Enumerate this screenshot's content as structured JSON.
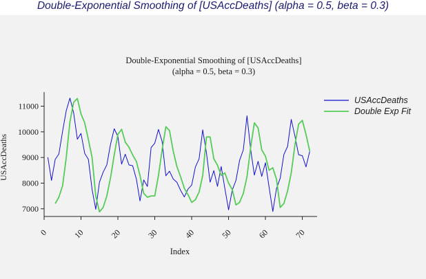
{
  "page_title": "Double-Exponential Smoothing of [USAccDeaths] (alpha = 0.5, beta = 0.3)",
  "colors": {
    "heading": "#1a1a6e",
    "panel_background": "#f2f2f2",
    "series_actual": "#1010cc",
    "series_fit": "#55cc55"
  },
  "chart_data": {
    "type": "line",
    "title": "Double-Exponential Smoothing of [USAccDeaths]",
    "subtitle": "(alpha = 0.5, beta = 0.3)",
    "xlabel": "Index",
    "ylabel": "USAccDeaths",
    "xlim": [
      0,
      74
    ],
    "ylim": [
      6700,
      11550
    ],
    "x_ticks": [
      0,
      10,
      20,
      30,
      40,
      50,
      60,
      70
    ],
    "y_ticks": [
      7000,
      8000,
      9000,
      10000,
      11000
    ],
    "grid": false,
    "legend_position": "right",
    "series": [
      {
        "name": "USAccDeaths",
        "color": "#1010cc",
        "x": [
          1,
          2,
          3,
          4,
          5,
          6,
          7,
          8,
          9,
          10,
          11,
          12,
          13,
          14,
          15,
          16,
          17,
          18,
          19,
          20,
          21,
          22,
          23,
          24,
          25,
          26,
          27,
          28,
          29,
          30,
          31,
          32,
          33,
          34,
          35,
          36,
          37,
          38,
          39,
          40,
          41,
          42,
          43,
          44,
          45,
          46,
          47,
          48,
          49,
          50,
          51,
          52,
          53,
          54,
          55,
          56,
          57,
          58,
          59,
          60,
          61,
          62,
          63,
          64,
          65,
          66,
          67,
          68,
          69,
          70,
          71,
          72
        ],
        "values": [
          9007,
          8106,
          8928,
          9137,
          10017,
          10826,
          11317,
          10744,
          9713,
          9938,
          9161,
          8927,
          7750,
          6981,
          8038,
          8422,
          8714,
          9512,
          10120,
          9823,
          8743,
          9129,
          8710,
          8680,
          8162,
          7306,
          8124,
          7870,
          9387,
          9556,
          10093,
          9620,
          8285,
          8466,
          8160,
          8034,
          7717,
          7461,
          7767,
          7925,
          8623,
          8945,
          10078,
          9179,
          8037,
          8488,
          7874,
          8647,
          7792,
          6957,
          7726,
          8106,
          8890,
          9299,
          10625,
          9302,
          8314,
          8850,
          8265,
          8796,
          7836,
          6892,
          7791,
          8192,
          9115,
          9434,
          10484,
          9827,
          9110,
          9070,
          8633,
          9240
        ]
      },
      {
        "name": "Double Exp Fit",
        "color": "#55cc55",
        "x": [
          3,
          4,
          5,
          6,
          7,
          8,
          9,
          10,
          11,
          12,
          13,
          14,
          15,
          16,
          17,
          18,
          19,
          20,
          21,
          22,
          23,
          24,
          25,
          26,
          27,
          28,
          29,
          30,
          31,
          32,
          33,
          34,
          35,
          36,
          37,
          38,
          39,
          40,
          41,
          42,
          43,
          44,
          45,
          46,
          47,
          48,
          49,
          50,
          51,
          52,
          53,
          54,
          55,
          56,
          57,
          58,
          59,
          60,
          61,
          62,
          63,
          64,
          65,
          66,
          67,
          68,
          69,
          70,
          71,
          72
        ],
        "values": [
          7200,
          7450,
          7900,
          9000,
          10400,
          11150,
          11300,
          10700,
          10350,
          9700,
          9000,
          7500,
          6880,
          7050,
          7500,
          8200,
          9100,
          9900,
          10100,
          9600,
          9400,
          9100,
          8850,
          8300,
          7600,
          7450,
          7500,
          7500,
          8300,
          9300,
          10200,
          10050,
          9250,
          8650,
          8250,
          7800,
          7550,
          7250,
          7350,
          7650,
          8300,
          9800,
          9800,
          8950,
          8700,
          8300,
          8400,
          8000,
          7750,
          7150,
          7250,
          7600,
          8250,
          9400,
          10350,
          10150,
          9300,
          9050,
          8500,
          8600,
          8150,
          7050,
          7200,
          7700,
          8400,
          9500,
          10300,
          10450,
          9900,
          9250
        ]
      }
    ]
  }
}
